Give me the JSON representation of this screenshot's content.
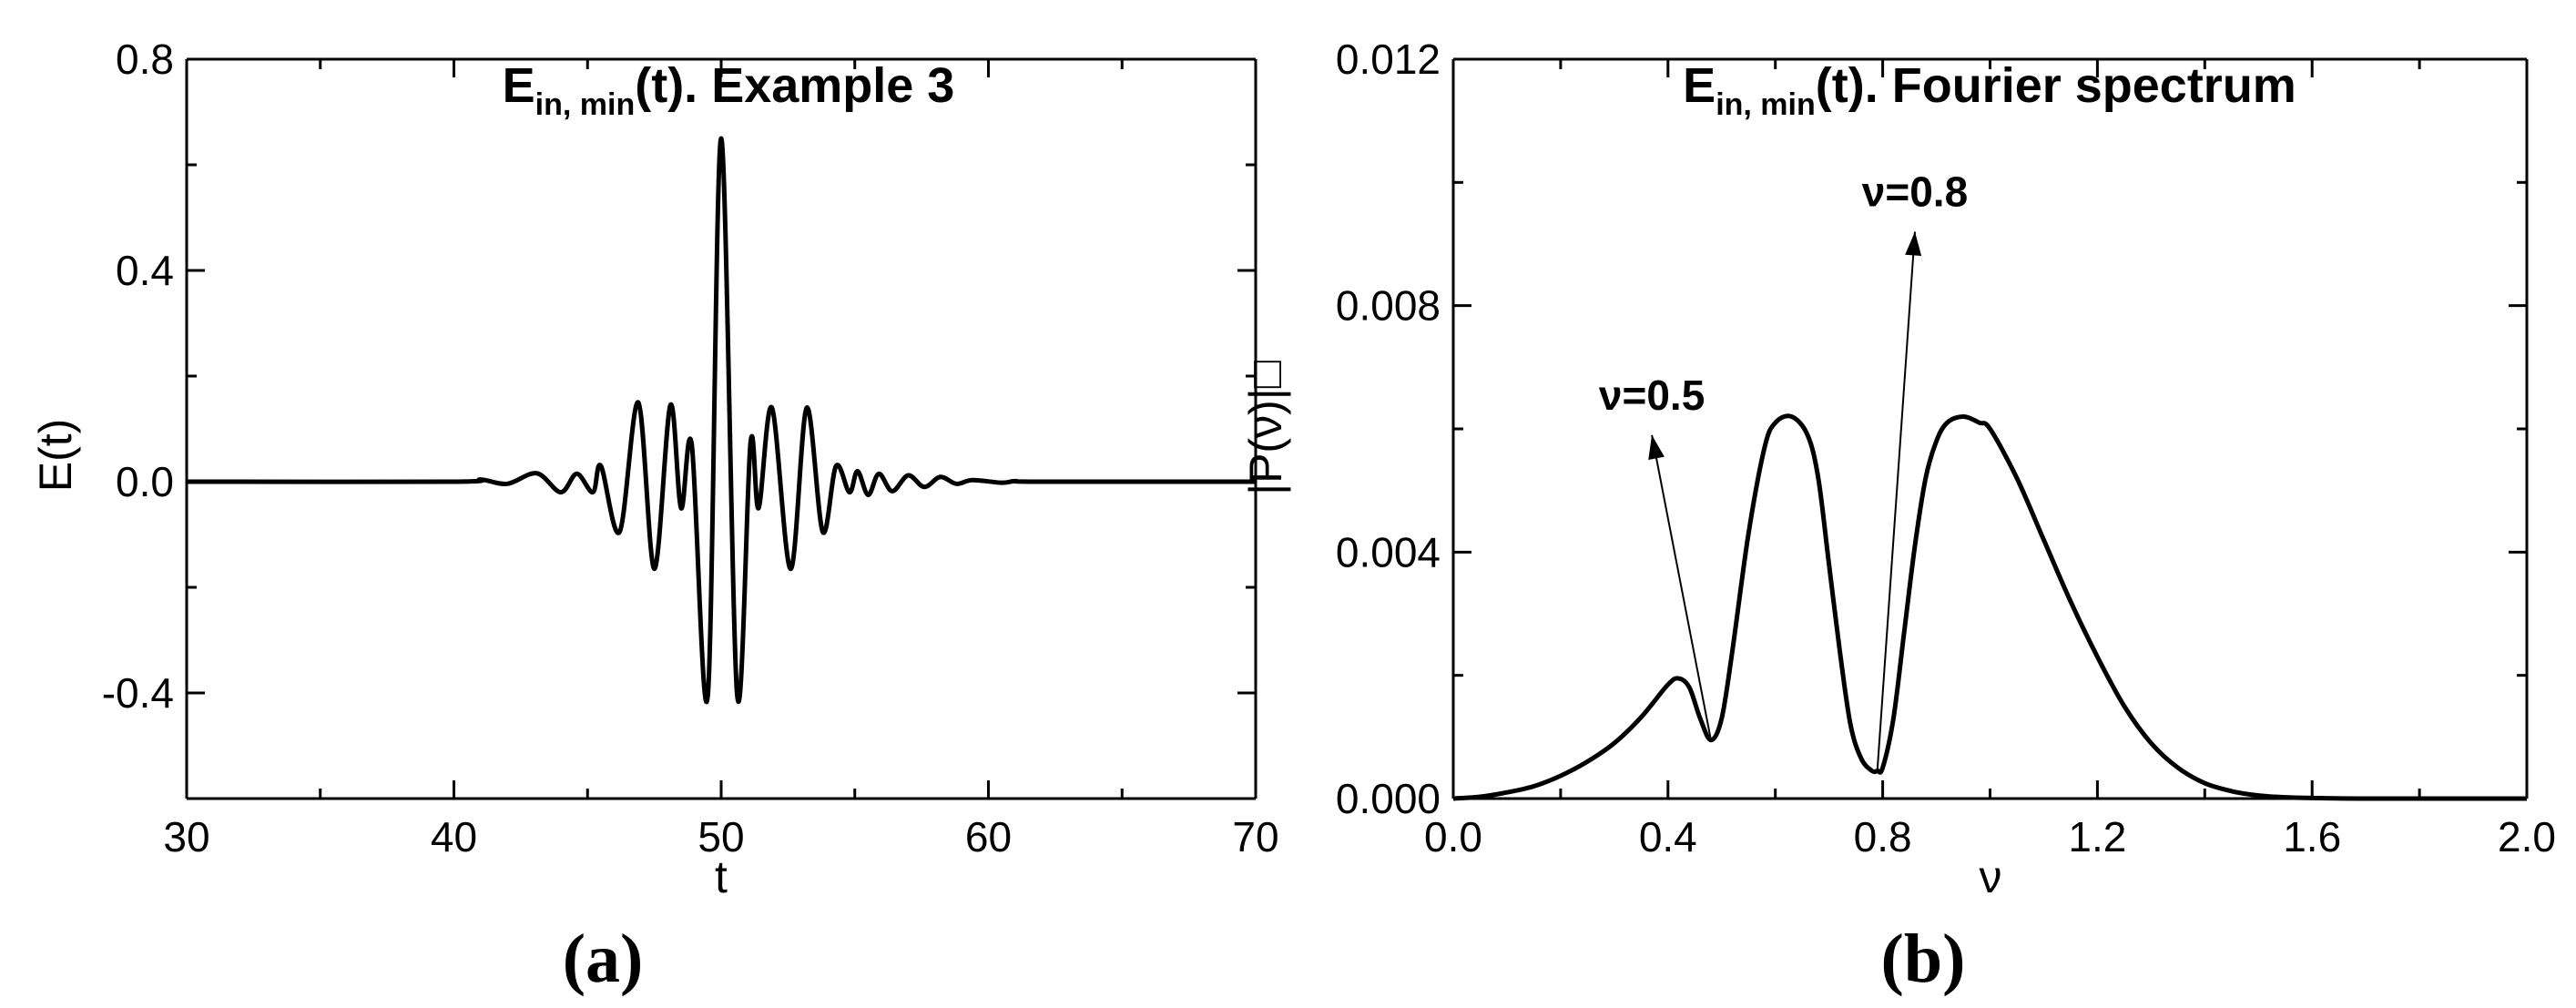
{
  "chart_data": [
    {
      "type": "line",
      "panel_label": "(a)",
      "title": {
        "main": "E",
        "sub": "in, min",
        "rest": "(t). Example 3"
      },
      "xlabel": "t",
      "ylabel": "E(t)",
      "xlim": [
        30,
        70
      ],
      "ylim": [
        -0.6,
        0.8
      ],
      "xticks": [
        30,
        40,
        50,
        60,
        70
      ],
      "xtick_labels": [
        "30",
        "40",
        "50",
        "60",
        "70"
      ],
      "yticks": [
        -0.4,
        0.0,
        0.4,
        0.8
      ],
      "ytick_labels": [
        "-0.4",
        "0.0",
        "0.4",
        "0.8"
      ],
      "grid": false,
      "series": [
        {
          "x": [
            30,
            40,
            41,
            42,
            43.1,
            44,
            44.6,
            45.2,
            45.5,
            46.2,
            46.9,
            47.5,
            48.1,
            48.5,
            48.9,
            49.5,
            50,
            50.6,
            51.1,
            51.4,
            51.9,
            52.6,
            53.2,
            53.8,
            54.3,
            54.8,
            55.1,
            55.5,
            55.9,
            56.4,
            57,
            57.6,
            58.2,
            58.8,
            59.4,
            60.5,
            61,
            62,
            70
          ],
          "y": [
            0,
            0,
            0.004,
            -0.004,
            0.016,
            -0.02,
            0.015,
            -0.02,
            0.03,
            -0.095,
            0.15,
            -0.165,
            0.145,
            -0.05,
            0.07,
            -0.405,
            0.65,
            -0.405,
            0.075,
            -0.05,
            0.14,
            -0.165,
            0.14,
            -0.095,
            0.03,
            -0.02,
            0.02,
            -0.025,
            0.015,
            -0.018,
            0.012,
            -0.01,
            0.009,
            -0.004,
            0.003,
            -0.002,
            0.001,
            0,
            0
          ]
        }
      ]
    },
    {
      "type": "line",
      "panel_label": "(b)",
      "title": {
        "main": "E",
        "sub": "in, min",
        "rest": "(t). Fourier spectrum"
      },
      "xlabel": "ν",
      "ylabel": "|P(ν)|□",
      "xlim": [
        0.0,
        2.0
      ],
      "ylim": [
        0.0,
        0.012
      ],
      "xticks": [
        0.0,
        0.4,
        0.8,
        1.2,
        1.6,
        2.0
      ],
      "xtick_labels": [
        "0.0",
        "0.4",
        "0.8",
        "1.2",
        "1.6",
        "2.0"
      ],
      "yticks": [
        0.0,
        0.004,
        0.008,
        0.012
      ],
      "ytick_labels": [
        "0.000",
        "0.004",
        "0.008",
        "0.012"
      ],
      "grid": false,
      "annotations": [
        {
          "text": "ν=0.5",
          "arrow_from": [
            0.48,
            0.00095
          ],
          "arrow_to": [
            0.37,
            0.0059
          ]
        },
        {
          "text": "ν=0.8",
          "arrow_from": [
            0.79,
            0.00045
          ],
          "arrow_to": [
            0.86,
            0.0092
          ]
        }
      ],
      "series": [
        {
          "x": [
            0.0,
            0.05,
            0.1,
            0.15,
            0.2,
            0.25,
            0.3,
            0.35,
            0.4,
            0.42,
            0.44,
            0.46,
            0.48,
            0.5,
            0.52,
            0.55,
            0.58,
            0.6,
            0.63,
            0.66,
            0.68,
            0.7,
            0.72,
            0.74,
            0.76,
            0.78,
            0.79,
            0.8,
            0.82,
            0.84,
            0.86,
            0.88,
            0.9,
            0.92,
            0.95,
            0.98,
            1.0,
            1.05,
            1.1,
            1.15,
            1.2,
            1.25,
            1.3,
            1.35,
            1.4,
            1.45,
            1.5,
            1.55,
            1.6,
            1.7,
            2.0
          ],
          "y": [
            0.0,
            3e-05,
            0.0001,
            0.0002,
            0.00037,
            0.0006,
            0.0009,
            0.00132,
            0.00185,
            0.00195,
            0.0018,
            0.0013,
            0.00095,
            0.0013,
            0.0024,
            0.0043,
            0.0057,
            0.0061,
            0.0062,
            0.0059,
            0.0052,
            0.0038,
            0.0024,
            0.0012,
            0.00065,
            0.00045,
            0.00045,
            0.0005,
            0.0013,
            0.0027,
            0.0041,
            0.0052,
            0.0058,
            0.0061,
            0.0062,
            0.0061,
            0.006,
            0.0052,
            0.0042,
            0.0032,
            0.0023,
            0.0015,
            0.0009,
            0.0005,
            0.00025,
            0.00012,
            5e-05,
            2e-05,
            1e-05,
            0.0,
            0.0
          ]
        }
      ]
    }
  ]
}
